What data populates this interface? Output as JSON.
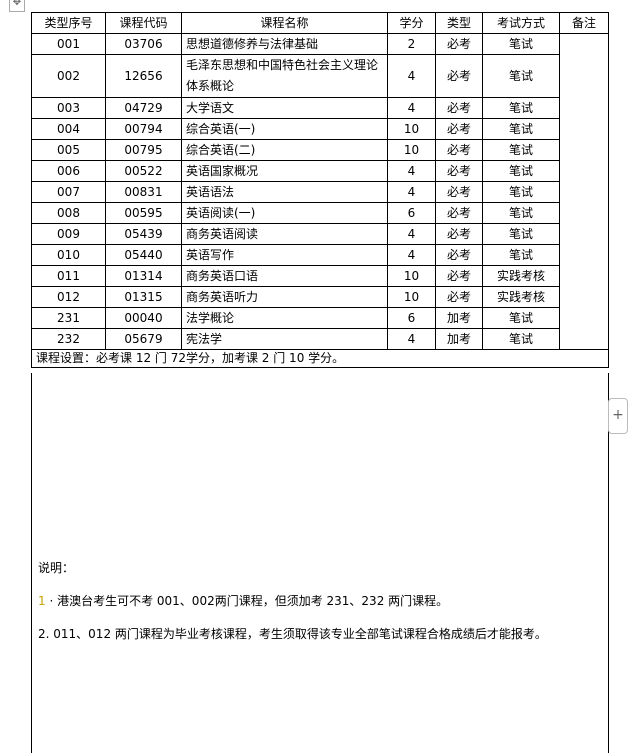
{
  "header": [
    "类型序号",
    "课程代码",
    "课程名称",
    "学分",
    "类型",
    "考试方式",
    "备注"
  ],
  "rows": [
    [
      "001",
      "03706",
      "思想道德修养与法律基础",
      "2",
      "必考",
      "笔试"
    ],
    [
      "002",
      "12656",
      "毛泽东思想和中国特色社会主义理论体系概论",
      "4",
      "必考",
      "笔试"
    ],
    [
      "003",
      "04729",
      "大学语文",
      "4",
      "必考",
      "笔试"
    ],
    [
      "004",
      "00794",
      "综合英语(一)",
      "10",
      "必考",
      "笔试"
    ],
    [
      "005",
      "00795",
      "综合英语(二)",
      "10",
      "必考",
      "笔试"
    ],
    [
      "006",
      "00522",
      "英语国家概况",
      "4",
      "必考",
      "笔试"
    ],
    [
      "007",
      "00831",
      "英语语法",
      "4",
      "必考",
      "笔试"
    ],
    [
      "008",
      "00595",
      "英语阅读(一)",
      "6",
      "必考",
      "笔试"
    ],
    [
      "009",
      "05439",
      "商务英语阅读",
      "4",
      "必考",
      "笔试"
    ],
    [
      "010",
      "05440",
      "英语写作",
      "4",
      "必考",
      "笔试"
    ],
    [
      "011",
      "01314",
      "商务英语口语",
      "10",
      "必考",
      "实践考核"
    ],
    [
      "012",
      "01315",
      "商务英语听力",
      "10",
      "必考",
      "实践考核"
    ],
    [
      "231",
      "00040",
      "法学概论",
      "6",
      "加考",
      "笔试"
    ],
    [
      "232",
      "05679",
      "宪法学",
      "4",
      "加考",
      "笔试"
    ]
  ],
  "summary": "课程设置：必考课 12 门 72学分，加考课 2 门 10 学分。",
  "notes": {
    "title": "说明：",
    "item1_num": "1",
    "item1": " · 港澳台考生可不考 001、002两门课程，但须加考 231、232 两门课程。",
    "item2": "2. 011、012 两门课程为毕业考核课程，考生须取得该专业全部笔试课程合格成绩后才能报考。"
  },
  "icons": {
    "move": "move-handle-icon",
    "add": "plus-icon"
  }
}
